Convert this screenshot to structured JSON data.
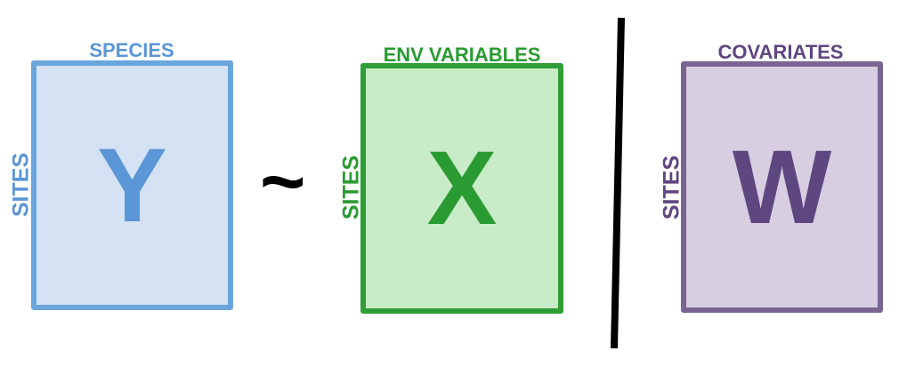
{
  "colors": {
    "species_stroke": "#6aa5dc",
    "species_fill": "#d4e2f4",
    "species_text": "#5b96d6",
    "env_stroke": "#2f9e37",
    "env_fill": "#c9ecc8",
    "env_text": "#2a9b32",
    "cov_stroke": "#7a6592",
    "cov_fill": "#d8cee2",
    "cov_text": "#5e4680",
    "divider": "#000000"
  },
  "diagram": {
    "species_matrix": {
      "top_label": "SPECIES",
      "side_label": "SITES",
      "letter": "Y"
    },
    "operator": "~",
    "env_matrix": {
      "top_label": "ENV VARIABLES",
      "side_label": "SITES",
      "letter": "X"
    },
    "covariate_matrix": {
      "top_label": "COVARIATES",
      "side_label": "SITES",
      "letter": "W"
    }
  }
}
